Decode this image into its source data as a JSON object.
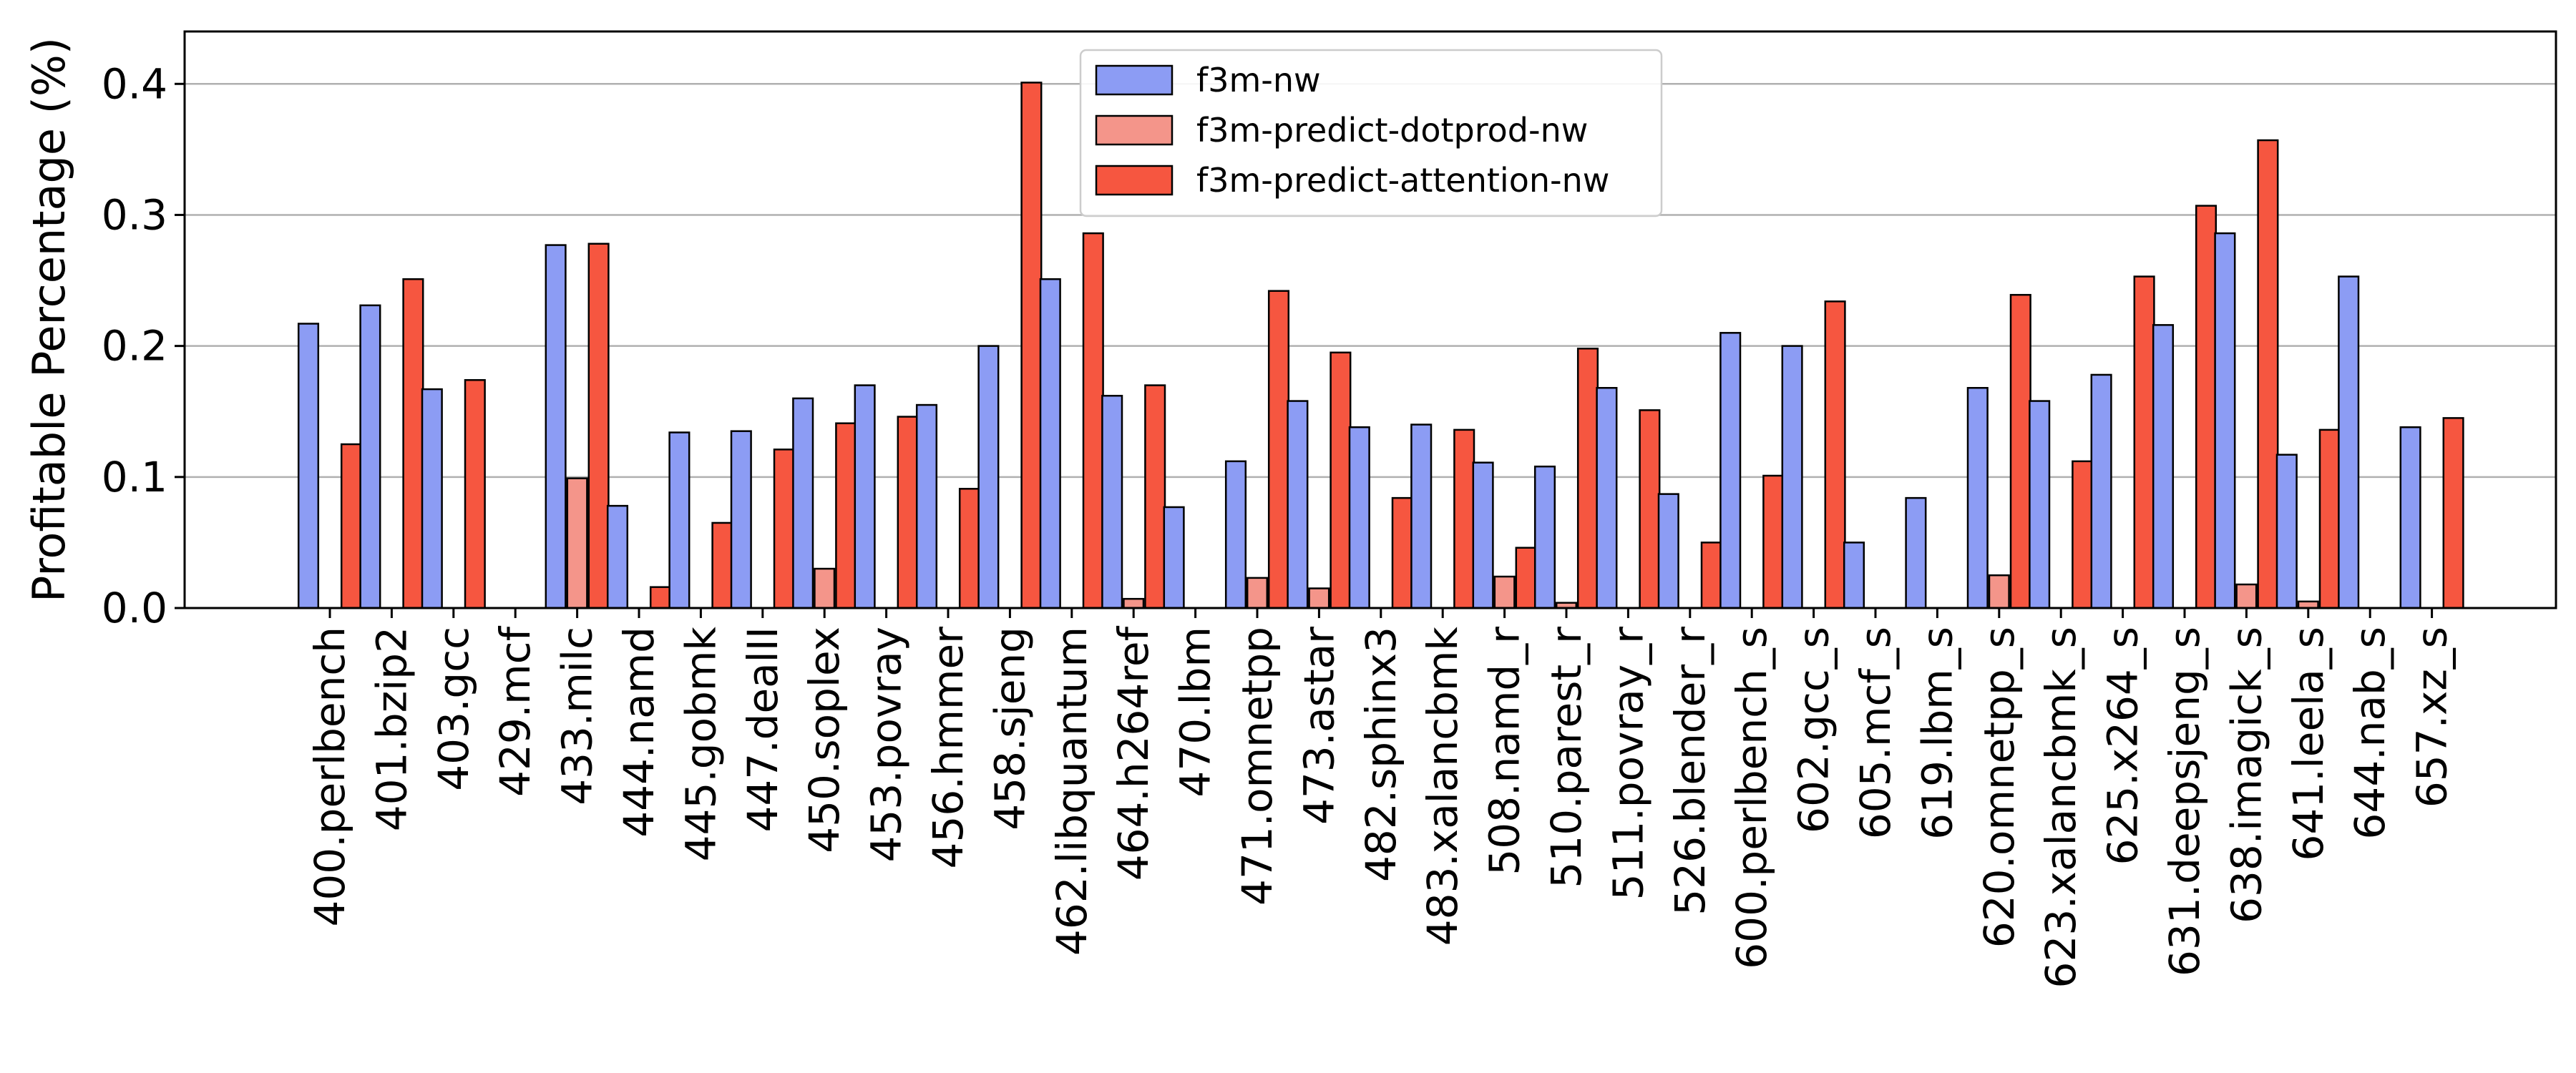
{
  "chart_data": {
    "type": "bar",
    "title": "",
    "xlabel": "",
    "ylabel": "Profitable Percentage (%)",
    "ylim": [
      0,
      0.44
    ],
    "yticks": [
      0.0,
      0.1,
      0.2,
      0.3,
      0.4
    ],
    "ytick_labels": [
      "0.0",
      "0.1",
      "0.2",
      "0.3",
      "0.4"
    ],
    "grid": "y-major",
    "legend_position": "top-center",
    "categories": [
      "400.perlbench",
      "401.bzip2",
      "403.gcc",
      "429.mcf",
      "433.milc",
      "444.namd",
      "445.gobmk",
      "447.dealII",
      "450.soplex",
      "453.povray",
      "456.hmmer",
      "458.sjeng",
      "462.libquantum",
      "464.h264ref",
      "470.lbm",
      "471.omnetpp",
      "473.astar",
      "482.sphinx3",
      "483.xalancbmk",
      "508.namd_r",
      "510.parest_r",
      "511.povray_r",
      "526.blender_r",
      "600.perlbench_s",
      "602.gcc_s",
      "605.mcf_s",
      "619.lbm_s",
      "620.omnetpp_s",
      "623.xalancbmk_s",
      "625.x264_s",
      "631.deepsjeng_s",
      "638.imagick_s",
      "641.leela_s",
      "644.nab_s",
      "657.xz_s"
    ],
    "series": [
      {
        "name": "f3m-nw",
        "color": "#8c9cf4",
        "values": [
          0.217,
          0.231,
          0.167,
          0.0,
          0.277,
          0.078,
          0.134,
          0.135,
          0.16,
          0.17,
          0.155,
          0.2,
          0.251,
          0.162,
          0.077,
          0.112,
          0.158,
          0.138,
          0.14,
          0.111,
          0.108,
          0.168,
          0.087,
          0.21,
          0.2,
          0.05,
          0.084,
          0.168,
          0.158,
          0.178,
          0.216,
          0.286,
          0.117,
          0.253,
          0.138
        ]
      },
      {
        "name": "f3m-predict-dotprod-nw",
        "color": "#f4958a",
        "values": [
          0.0,
          0.0,
          0.0,
          0.0,
          0.099,
          0.0,
          0.0,
          0.0,
          0.03,
          0.0,
          0.0,
          0.0,
          0.0,
          0.007,
          0.0,
          0.023,
          0.015,
          0.0,
          0.0,
          0.024,
          0.004,
          0.0,
          0.0,
          0.0,
          0.0,
          0.0,
          0.0,
          0.025,
          0.0,
          0.0,
          0.0,
          0.018,
          0.005,
          0.0,
          0.0
        ]
      },
      {
        "name": "f3m-predict-attention-nw",
        "color": "#f65640",
        "values": [
          0.125,
          0.251,
          0.174,
          0.0,
          0.278,
          0.016,
          0.065,
          0.121,
          0.141,
          0.146,
          0.091,
          0.401,
          0.286,
          0.17,
          0.0,
          0.242,
          0.195,
          0.084,
          0.136,
          0.046,
          0.198,
          0.151,
          0.05,
          0.101,
          0.234,
          0.0,
          0.0,
          0.239,
          0.112,
          0.253,
          0.307,
          0.357,
          0.136,
          0.0,
          0.145
        ]
      }
    ]
  }
}
